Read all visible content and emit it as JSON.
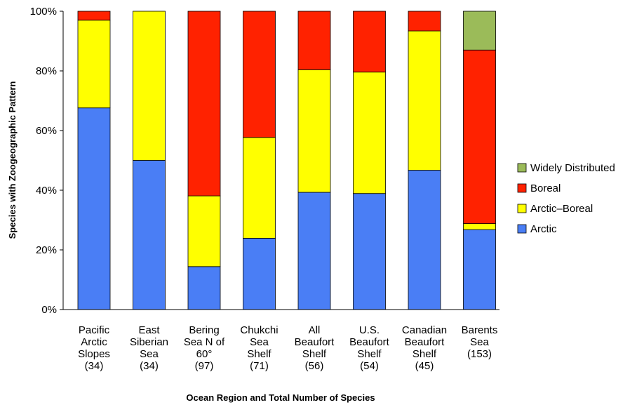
{
  "chart_data": {
    "type": "bar",
    "stacked": true,
    "title": "",
    "xlabel": "Ocean Region and Total Number of Species",
    "ylabel": "Species with Zoogeographic Pattern",
    "ylim": [
      0,
      100
    ],
    "yticks": [
      "0%",
      "20%",
      "40%",
      "60%",
      "80%",
      "100%"
    ],
    "ytick_values": [
      0,
      20,
      40,
      60,
      80,
      100
    ],
    "grid": false,
    "legend_position": "right",
    "categories": [
      [
        "Pacific",
        "Arctic",
        "Slopes",
        "(34)"
      ],
      [
        "East",
        "Siberian",
        "Sea",
        "(34)"
      ],
      [
        "Bering",
        "Sea N of",
        "60°",
        "(97)"
      ],
      [
        "Chukchi",
        "Sea",
        "Shelf",
        "(71)"
      ],
      [
        "All",
        "Beaufort",
        "Shelf",
        "(56)"
      ],
      [
        "U.S.",
        "Beaufort",
        "Shelf",
        "(54)"
      ],
      [
        "Canadian",
        "Beaufort",
        "Shelf",
        "(45)"
      ],
      [
        "Barents",
        "Sea",
        "(153)"
      ]
    ],
    "series": [
      {
        "name": "Arctic",
        "color": "#4a7ef5",
        "values": [
          67.6,
          50.0,
          14.4,
          23.9,
          39.3,
          38.9,
          46.7,
          26.8
        ]
      },
      {
        "name": "Arctic–Boreal",
        "color": "#ffff00",
        "values": [
          29.4,
          50.0,
          23.7,
          33.8,
          41.1,
          40.7,
          46.7,
          2.0
        ]
      },
      {
        "name": "Boreal",
        "color": "#ff2200",
        "values": [
          3.0,
          0.0,
          61.9,
          42.3,
          19.6,
          20.4,
          6.6,
          58.2
        ]
      },
      {
        "name": "Widely Distributed",
        "color": "#9bbb59",
        "values": [
          0.0,
          0.0,
          0.0,
          0.0,
          0.0,
          0.0,
          0.0,
          13.0
        ]
      }
    ],
    "legend_order": [
      "Widely Distributed",
      "Boreal",
      "Arctic–Boreal",
      "Arctic"
    ]
  }
}
